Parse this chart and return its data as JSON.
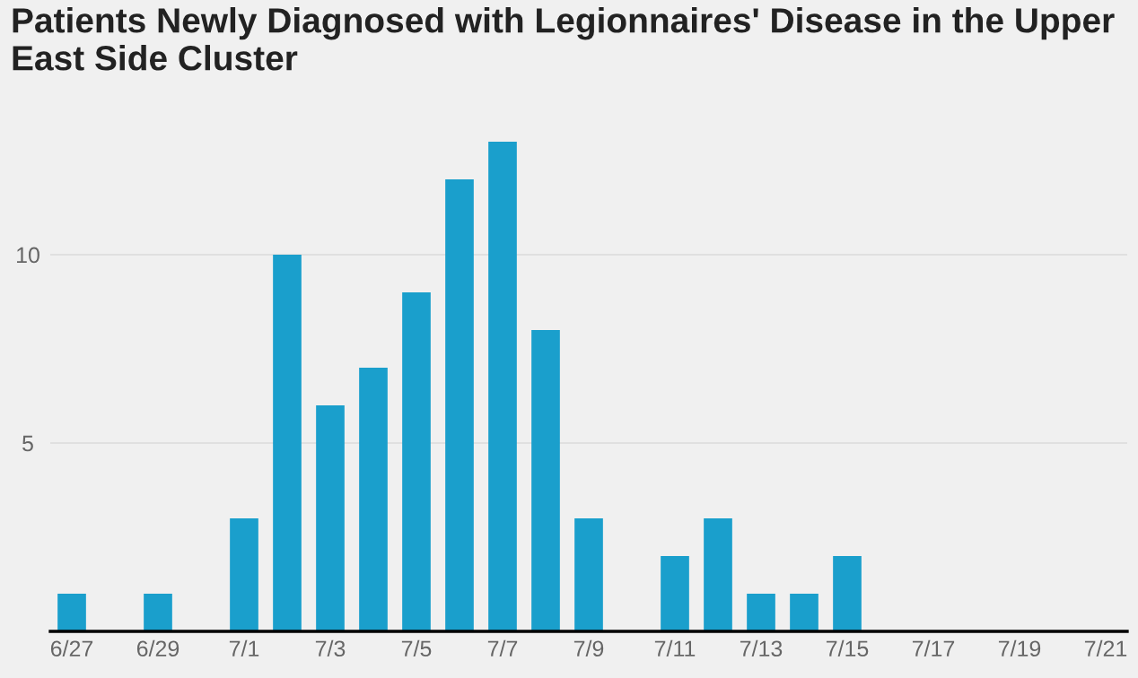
{
  "chart_data": {
    "type": "bar",
    "title": "Patients Newly Diagnosed with Legionnaires' Disease in the Upper East Side Cluster",
    "categories": [
      "6/27",
      null,
      "6/29",
      null,
      "7/1",
      null,
      "7/3",
      null,
      "7/5",
      null,
      "7/7",
      null,
      "7/9",
      null,
      "7/11",
      null,
      "7/13",
      null,
      "7/15",
      null,
      "7/17",
      null,
      "7/19",
      null,
      "7/21"
    ],
    "values": [
      1,
      0,
      1,
      0,
      3,
      10,
      6,
      7,
      9,
      12,
      13,
      8,
      3,
      0,
      2,
      3,
      1,
      1,
      2,
      0,
      0,
      0,
      0,
      0,
      0
    ],
    "color": "#1a9fcc",
    "ylim": [
      0,
      13
    ],
    "yticks": [
      5,
      10
    ],
    "grid": "y",
    "legend": false
  }
}
